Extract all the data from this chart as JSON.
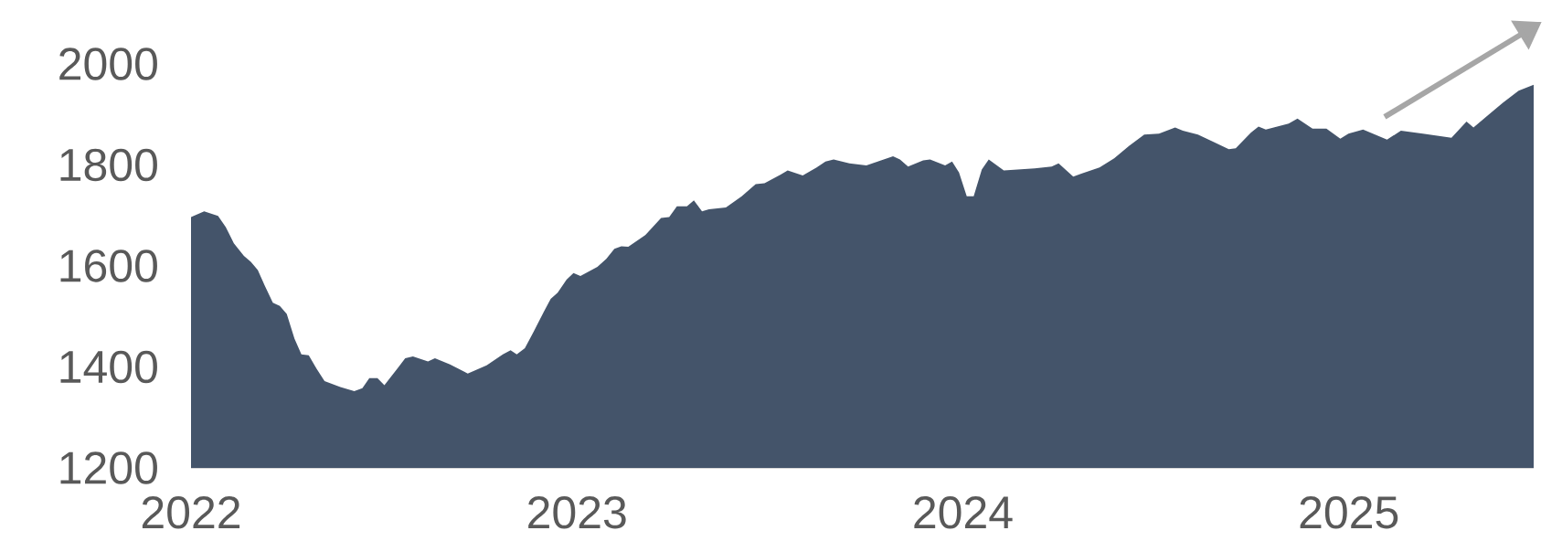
{
  "chart_data": {
    "type": "area",
    "color": "#44546a",
    "x": [
      2022.0,
      2022.034,
      2022.07,
      2022.09,
      2022.111,
      2022.137,
      2022.155,
      2022.173,
      2022.191,
      2022.212,
      2022.23,
      2022.248,
      2022.268,
      2022.286,
      2022.305,
      2022.325,
      2022.346,
      2022.387,
      2022.423,
      2022.444,
      2022.462,
      2022.483,
      2022.501,
      2022.537,
      2022.555,
      2022.575,
      2022.614,
      2022.632,
      2022.671,
      2022.717,
      2022.766,
      2022.808,
      2022.828,
      2022.844,
      2022.865,
      2022.888,
      2022.914,
      2022.932,
      2022.95,
      2022.973,
      2022.991,
      2023.009,
      2023.053,
      2023.076,
      2023.097,
      2023.115,
      2023.133,
      2023.177,
      2023.218,
      2023.239,
      2023.259,
      2023.285,
      2023.303,
      2023.324,
      2023.342,
      2023.386,
      2023.427,
      2023.463,
      2023.486,
      2023.528,
      2023.546,
      2023.585,
      2023.621,
      2023.644,
      2023.665,
      2023.706,
      2023.75,
      2023.819,
      2023.837,
      2023.858,
      2023.897,
      2023.915,
      2023.954,
      2023.972,
      2023.99,
      2024.01,
      2024.028,
      2024.049,
      2024.067,
      2024.106,
      2024.186,
      2024.23,
      2024.248,
      2024.286,
      2024.307,
      2024.354,
      2024.392,
      2024.431,
      2024.47,
      2024.508,
      2024.55,
      2024.57,
      2024.609,
      2024.648,
      2024.689,
      2024.707,
      2024.746,
      2024.766,
      2024.785,
      2024.844,
      2024.867,
      2024.906,
      2024.942,
      2024.978,
      2024.999,
      2025.037,
      2025.099,
      2025.135,
      2025.192,
      2025.266,
      2025.305,
      2025.323,
      2025.363,
      2025.399,
      2025.44,
      2025.479
    ],
    "values": [
      1697,
      1708,
      1699,
      1677,
      1645,
      1620,
      1608,
      1592,
      1561,
      1527,
      1521,
      1505,
      1456,
      1425,
      1423,
      1397,
      1372,
      1360,
      1352,
      1358,
      1378,
      1378,
      1364,
      1399,
      1417,
      1421,
      1411,
      1417,
      1405,
      1387,
      1403,
      1425,
      1433,
      1425,
      1437,
      1470,
      1509,
      1535,
      1547,
      1573,
      1586,
      1580,
      1598,
      1614,
      1634,
      1639,
      1638,
      1661,
      1695,
      1697,
      1718,
      1718,
      1730,
      1708,
      1712,
      1716,
      1738,
      1762,
      1764,
      1781,
      1789,
      1779,
      1795,
      1807,
      1811,
      1803,
      1799,
      1817,
      1811,
      1797,
      1809,
      1811,
      1799,
      1807,
      1785,
      1738,
      1738,
      1791,
      1811,
      1789,
      1793,
      1797,
      1803,
      1777,
      1783,
      1795,
      1813,
      1838,
      1860,
      1862,
      1874,
      1868,
      1860,
      1846,
      1831,
      1833,
      1864,
      1876,
      1870,
      1882,
      1892,
      1872,
      1872,
      1852,
      1862,
      1870,
      1850,
      1868,
      1862,
      1854,
      1886,
      1874,
      1900,
      1923,
      1947,
      1959
    ],
    "xlim": [
      2022,
      2025.479
    ],
    "ylim": [
      1200,
      2000
    ],
    "xticks": [
      2022,
      2023,
      2024,
      2025
    ],
    "yticks": [
      1200,
      1400,
      1600,
      1800,
      2000
    ],
    "grid": false
  }
}
